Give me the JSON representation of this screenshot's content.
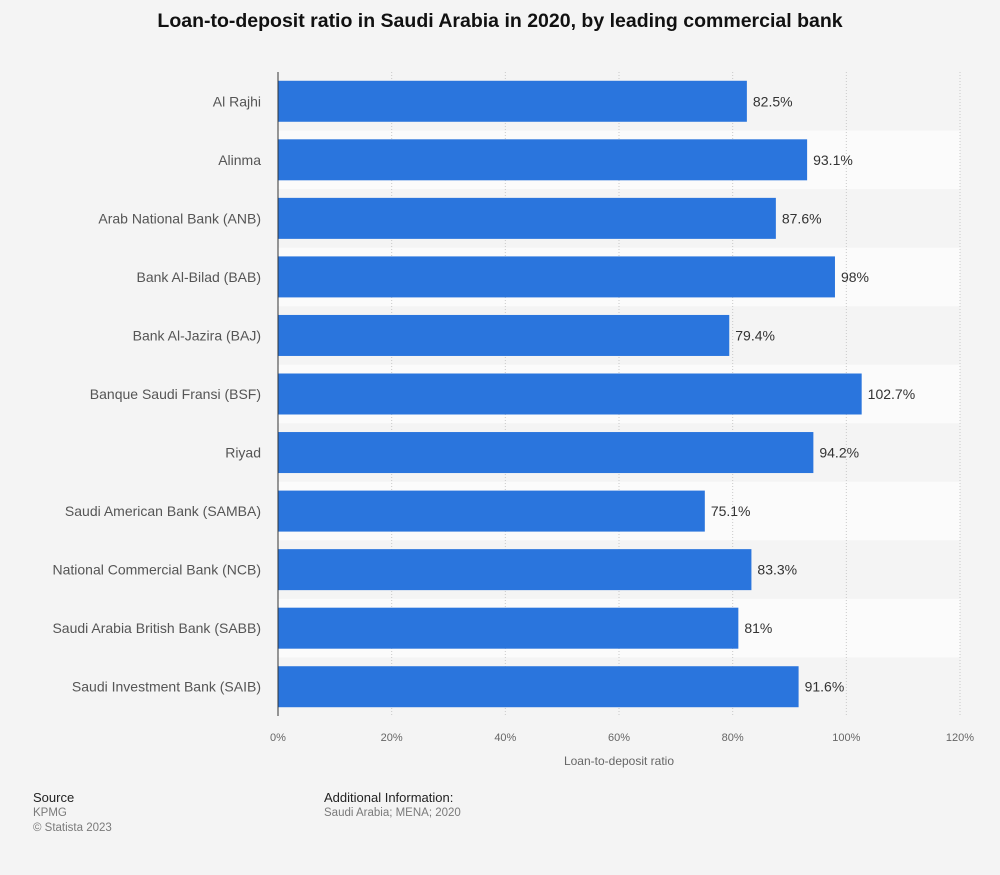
{
  "chart_data": {
    "type": "bar",
    "orientation": "horizontal",
    "title": "Loan-to-deposit ratio in Saudi Arabia in 2020, by leading commercial bank",
    "xlabel": "Loan-to-deposit ratio",
    "ylabel": "",
    "xlim": [
      0,
      120
    ],
    "x_tick_labels": [
      "0%",
      "20%",
      "40%",
      "60%",
      "80%",
      "100%",
      "120%"
    ],
    "grid": true,
    "categories": [
      "Al Rajhi",
      "Alinma",
      "Arab National Bank (ANB)",
      "Bank Al-Bilad (BAB)",
      "Bank Al-Jazira (BAJ)",
      "Banque Saudi Fransi (BSF)",
      "Riyad",
      "Saudi American Bank (SAMBA)",
      "National Commercial Bank (NCB)",
      "Saudi Arabia British Bank (SABB)",
      "Saudi Investment Bank (SAIB)"
    ],
    "values": [
      82.5,
      93.1,
      87.6,
      98,
      79.4,
      102.7,
      94.2,
      75.1,
      83.3,
      81,
      91.6
    ],
    "value_labels": [
      "82.5%",
      "93.1%",
      "87.6%",
      "98%",
      "79.4%",
      "102.7%",
      "94.2%",
      "75.1%",
      "83.3%",
      "81%",
      "91.6%"
    ],
    "bar_color": "#2a75dd"
  },
  "footer": {
    "source_heading": "Source",
    "source_name": "KPMG",
    "copyright": "© Statista 2023",
    "info_heading": "Additional Information:",
    "info_text": "Saudi Arabia; MENA; 2020"
  }
}
